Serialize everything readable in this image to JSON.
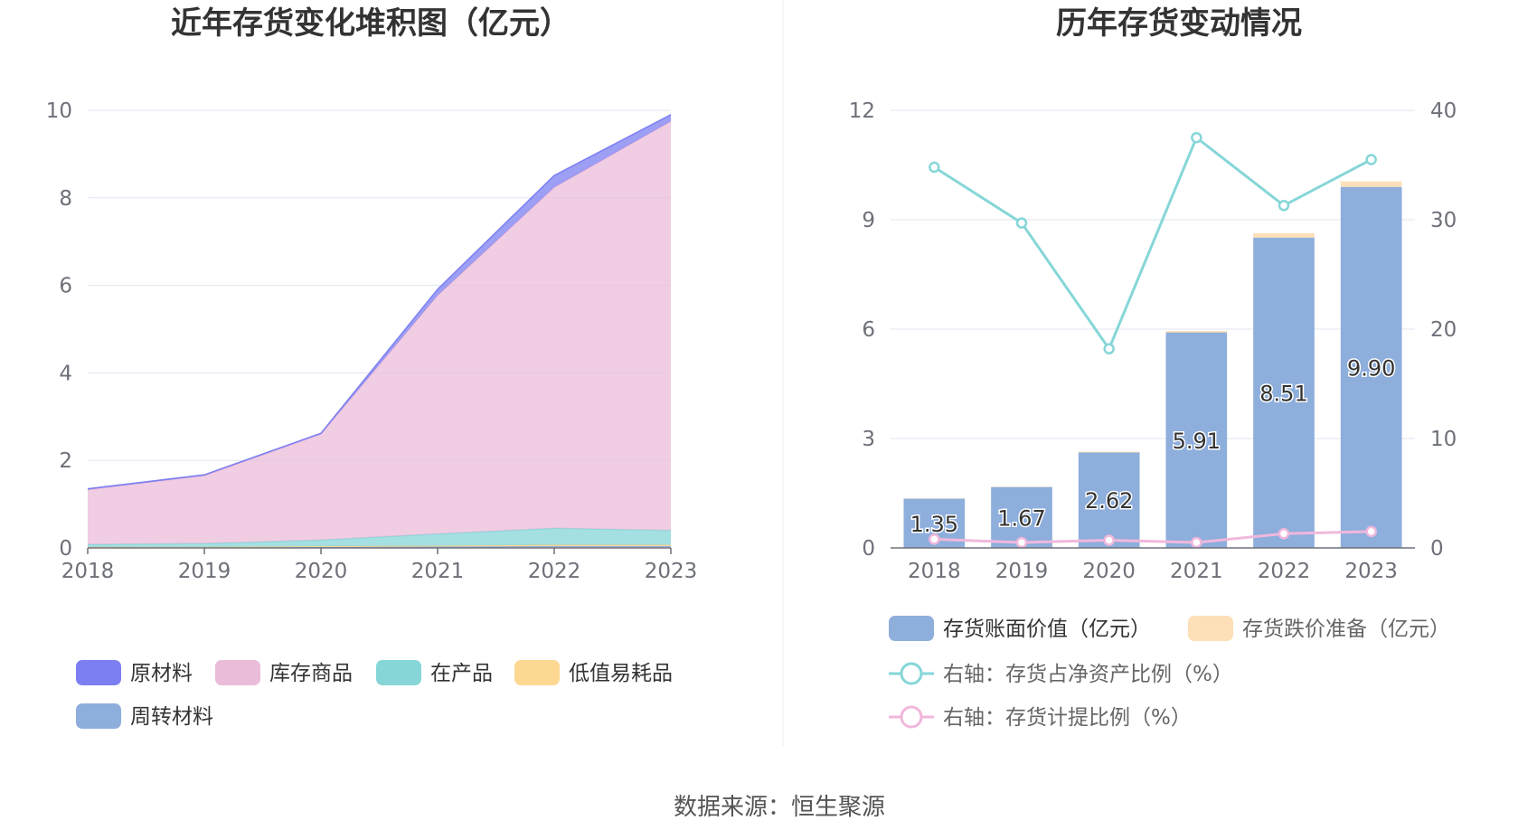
{
  "source_text": "数据来源：恒生聚源",
  "chart_data": [
    {
      "type": "area",
      "stacked": true,
      "title": "近年存货变化堆积图（亿元）",
      "x": [
        "2018",
        "2019",
        "2020",
        "2021",
        "2022",
        "2023"
      ],
      "ylim": [
        0,
        10
      ],
      "yticks": [
        0,
        2,
        4,
        6,
        8,
        10
      ],
      "grid": true,
      "legend_position": "bottom-left",
      "series": [
        {
          "name": "周转材料",
          "color": "#8eaedc",
          "values": [
            0.01,
            0.01,
            0.02,
            0.03,
            0.04,
            0.04
          ]
        },
        {
          "name": "低值易耗品",
          "color": "#fcd893",
          "values": [
            0.01,
            0.01,
            0.02,
            0.02,
            0.03,
            0.03
          ]
        },
        {
          "name": "在产品",
          "color": "#86d6d8",
          "values": [
            0.06,
            0.08,
            0.14,
            0.27,
            0.38,
            0.33
          ]
        },
        {
          "name": "库存商品",
          "color": "#ebbcd9",
          "values": [
            1.25,
            1.55,
            2.42,
            5.45,
            7.79,
            9.35
          ]
        },
        {
          "name": "原材料",
          "color": "#7c7ff2",
          "values": [
            0.02,
            0.02,
            0.02,
            0.14,
            0.27,
            0.15
          ]
        }
      ],
      "legend_order": [
        "原材料",
        "库存商品",
        "在产品",
        "低值易耗品",
        "周转材料"
      ]
    },
    {
      "type": "bar",
      "stacked": true,
      "title": "历年存货变动情况",
      "categories": [
        "2018",
        "2019",
        "2020",
        "2021",
        "2022",
        "2023"
      ],
      "ylim": [
        0,
        12
      ],
      "yticks": [
        0,
        3,
        6,
        9,
        12
      ],
      "y2lim": [
        0,
        40
      ],
      "y2ticks": [
        0,
        10,
        20,
        30,
        40
      ],
      "grid": true,
      "legend_position": "bottom",
      "series": [
        {
          "name": "存货账面价值（亿元）",
          "type": "bar",
          "color": "#8eaedc",
          "values": [
            1.35,
            1.67,
            2.62,
            5.91,
            8.51,
            9.9
          ],
          "labels": [
            "1.35",
            "1.67",
            "2.62",
            "5.91",
            "8.51",
            "9.90"
          ]
        },
        {
          "name": "存货跌价准备（亿元）",
          "type": "bar",
          "color": "#fde0b8",
          "values": [
            0.01,
            0.01,
            0.02,
            0.04,
            0.12,
            0.15
          ]
        },
        {
          "name": "右轴：存货占净资产比例（%）",
          "type": "line",
          "axis": "right",
          "color": "#86d6d8",
          "values": [
            34.8,
            29.7,
            18.2,
            37.5,
            31.3,
            35.5
          ]
        },
        {
          "name": "右轴：存货计提比例（%）",
          "type": "line",
          "axis": "right",
          "color": "#f0b8dc",
          "values": [
            0.8,
            0.5,
            0.7,
            0.5,
            1.3,
            1.5
          ]
        }
      ]
    }
  ]
}
